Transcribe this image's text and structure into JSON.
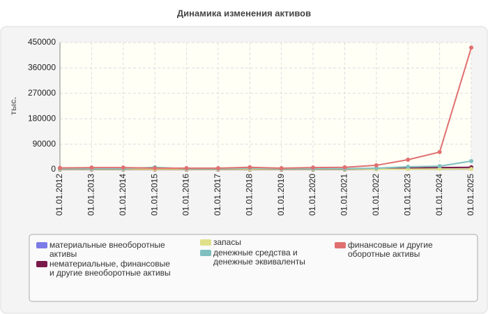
{
  "chart_data": {
    "type": "line",
    "title": "Динамика изменения активов",
    "y_label": "тыс.",
    "categories": [
      "01.01.2012",
      "01.01.2013",
      "01.01.2014",
      "01.01.2015",
      "01.01.2016",
      "01.01.2017",
      "01.01.2018",
      "01.01.2019",
      "01.01.2020",
      "01.01.2021",
      "01.01.2022",
      "01.01.2023",
      "01.01.2024",
      "01.01.2025"
    ],
    "series": [
      {
        "name": "материальные внеоборотные активы",
        "color": "#7b7be8",
        "values": [
          2000,
          2000,
          2000,
          1500,
          1500,
          1500,
          2000,
          2000,
          2000,
          2000,
          2500,
          3000,
          3000,
          3000
        ]
      },
      {
        "name": "нематериальные, финансовые и другие внеоборотные активы",
        "color": "#7a1a4a",
        "values": [
          0,
          0,
          0,
          0,
          0,
          0,
          0,
          0,
          0,
          0,
          1000,
          5000,
          7000,
          8000
        ]
      },
      {
        "name": "запасы",
        "color": "#e0e08a",
        "values": [
          1000,
          1000,
          1000,
          1000,
          1000,
          1000,
          1000,
          1000,
          1000,
          1000,
          1000,
          1500,
          2000,
          2000
        ]
      },
      {
        "name": "денежные средства и денежные эквиваленты",
        "color": "#7fbfbf",
        "values": [
          3000,
          3000,
          3000,
          8000,
          3000,
          3000,
          5000,
          3000,
          3000,
          3000,
          5000,
          10000,
          12000,
          30000
        ]
      },
      {
        "name": "финансовые и другие оборотные активы",
        "color": "#e07070",
        "values": [
          6000,
          7000,
          7000,
          5000,
          5000,
          5000,
          8000,
          5000,
          7000,
          8000,
          15000,
          35000,
          62000,
          432000
        ]
      }
    ],
    "ylim": [
      0,
      450000
    ],
    "yticks": [
      0,
      90000,
      180000,
      270000,
      360000,
      450000
    ],
    "grid": true
  }
}
